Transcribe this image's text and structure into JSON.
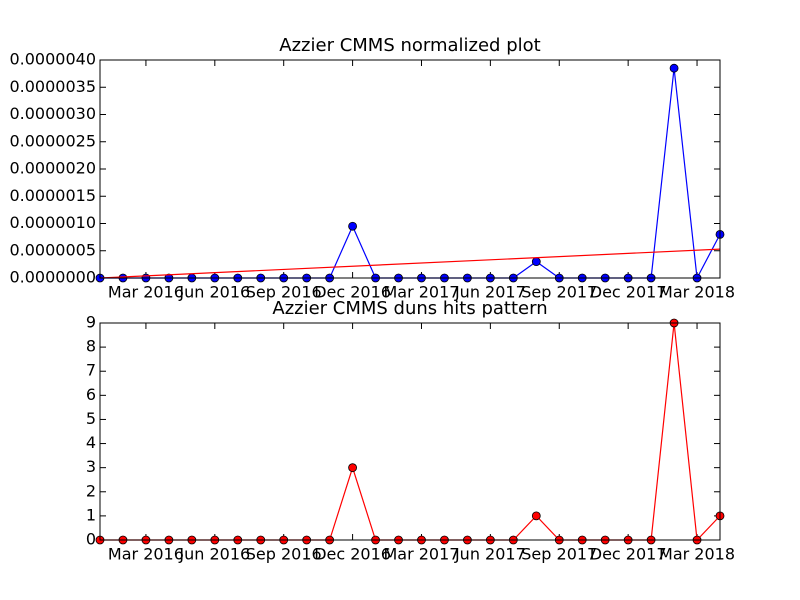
{
  "chart_data": [
    {
      "type": "line",
      "title": "Azzier CMMS normalized plot",
      "x": [
        "Jan 2016",
        "Feb 2016",
        "Mar 2016",
        "Apr 2016",
        "May 2016",
        "Jun 2016",
        "Jul 2016",
        "Aug 2016",
        "Sep 2016",
        "Oct 2016",
        "Nov 2016",
        "Dec 2016",
        "Jan 2017",
        "Feb 2017",
        "Mar 2017",
        "Apr 2017",
        "May 2017",
        "Jun 2017",
        "Jul 2017",
        "Aug 2017",
        "Sep 2017",
        "Oct 2017",
        "Nov 2017",
        "Dec 2017",
        "Jan 2018",
        "Feb 2018",
        "Mar 2018",
        "Apr 2018"
      ],
      "series": [
        {
          "color": "#0000ff",
          "marker": true,
          "values": [
            0,
            0,
            0,
            0,
            0,
            0,
            0,
            0,
            0,
            0,
            0,
            9.5e-07,
            0,
            0,
            0,
            0,
            0,
            0,
            0,
            3e-07,
            0,
            0,
            0,
            0,
            0,
            3.85e-06,
            0,
            8e-07
          ]
        },
        {
          "color": "#ff0000",
          "marker": false,
          "x": [
            "Jan 2016",
            "Apr 2018"
          ],
          "values": [
            0,
            5.3e-07
          ]
        }
      ],
      "ylim": [
        0,
        4e-06
      ],
      "yticks": [
        {
          "value": 0,
          "label": "0.0000000"
        },
        {
          "value": 5e-07,
          "label": "0.0000005"
        },
        {
          "value": 1e-06,
          "label": "0.0000010"
        },
        {
          "value": 1.5e-06,
          "label": "0.0000015"
        },
        {
          "value": 2e-06,
          "label": "0.0000020"
        },
        {
          "value": 2.5e-06,
          "label": "0.0000025"
        },
        {
          "value": 3e-06,
          "label": "0.0000030"
        },
        {
          "value": 3.5e-06,
          "label": "0.0000035"
        },
        {
          "value": 4e-06,
          "label": "0.0000040"
        }
      ],
      "xticks": [
        "Mar 2016",
        "Jun 2016",
        "Sep 2016",
        "Dec 2016",
        "Mar 2017",
        "Jun 2017",
        "Sep 2017",
        "Dec 2017",
        "Mar 2018"
      ]
    },
    {
      "type": "line",
      "title": "Azzier CMMS duns hits pattern",
      "x": [
        "Jan 2016",
        "Feb 2016",
        "Mar 2016",
        "Apr 2016",
        "May 2016",
        "Jun 2016",
        "Jul 2016",
        "Aug 2016",
        "Sep 2016",
        "Oct 2016",
        "Nov 2016",
        "Dec 2016",
        "Jan 2017",
        "Feb 2017",
        "Mar 2017",
        "Apr 2017",
        "May 2017",
        "Jun 2017",
        "Jul 2017",
        "Aug 2017",
        "Sep 2017",
        "Oct 2017",
        "Nov 2017",
        "Dec 2017",
        "Jan 2018",
        "Feb 2018",
        "Mar 2018",
        "Apr 2018"
      ],
      "series": [
        {
          "color": "#ff0000",
          "marker": true,
          "values": [
            0,
            0,
            0,
            0,
            0,
            0,
            0,
            0,
            0,
            0,
            0,
            3,
            0,
            0,
            0,
            0,
            0,
            0,
            0,
            1,
            0,
            0,
            0,
            0,
            0,
            9,
            0,
            1
          ]
        }
      ],
      "ylim": [
        0,
        9
      ],
      "yticks": [
        0,
        1,
        2,
        3,
        4,
        5,
        6,
        7,
        8,
        9
      ],
      "xticks": [
        "Mar 2016",
        "Jun 2016",
        "Sep 2016",
        "Dec 2016",
        "Mar 2017",
        "Jun 2017",
        "Sep 2017",
        "Dec 2017",
        "Mar 2018"
      ]
    }
  ]
}
